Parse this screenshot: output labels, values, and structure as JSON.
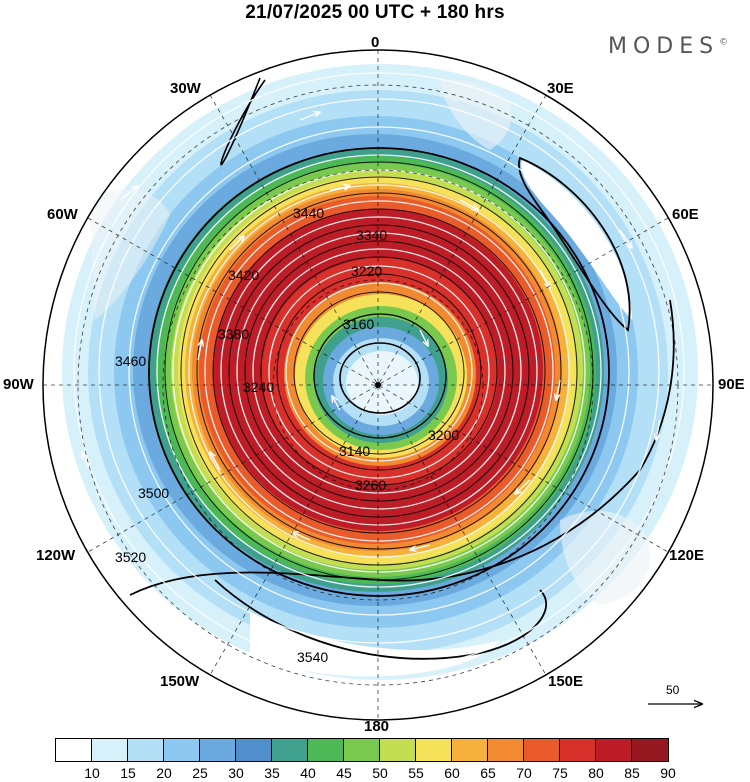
{
  "title": "21/07/2025  00 UTC  + 180 hrs",
  "logo": "MODES",
  "logo_mark": "©",
  "longitude_labels": {
    "top": "0",
    "bottom": "180",
    "left": "90W",
    "right": "90E",
    "nw30": "30W",
    "ne30": "30E",
    "w60": "60W",
    "e60": "60E",
    "w120": "120W",
    "e120": "120E",
    "w150": "150W",
    "e150": "150E"
  },
  "contour_labels": {
    "c3140": "3140",
    "c3160": "3160",
    "c3200": "3200",
    "c3220": "3220",
    "c3240": "3240",
    "c3260": "3260",
    "c3340": "3340",
    "c3380": "3380",
    "c3420": "3420",
    "c3440": "3440",
    "c3460": "3460",
    "c3500": "3500",
    "c3520": "3520",
    "c3540": "3540"
  },
  "reference_vector_label": "50",
  "colorbar": {
    "ticks": [
      "10",
      "15",
      "20",
      "25",
      "30",
      "35",
      "40",
      "45",
      "50",
      "55",
      "60",
      "65",
      "70",
      "75",
      "80",
      "85",
      "90"
    ],
    "colors": [
      "#ffffff",
      "#d7f1fb",
      "#b4e0f7",
      "#8cc8ef",
      "#6aaadf",
      "#4f8fcb",
      "#40a08e",
      "#4cb856",
      "#79c94f",
      "#c3de52",
      "#f6e25a",
      "#f6b13d",
      "#f18a30",
      "#ea5b2b",
      "#d8302b",
      "#bc1d27",
      "#961820"
    ]
  }
}
